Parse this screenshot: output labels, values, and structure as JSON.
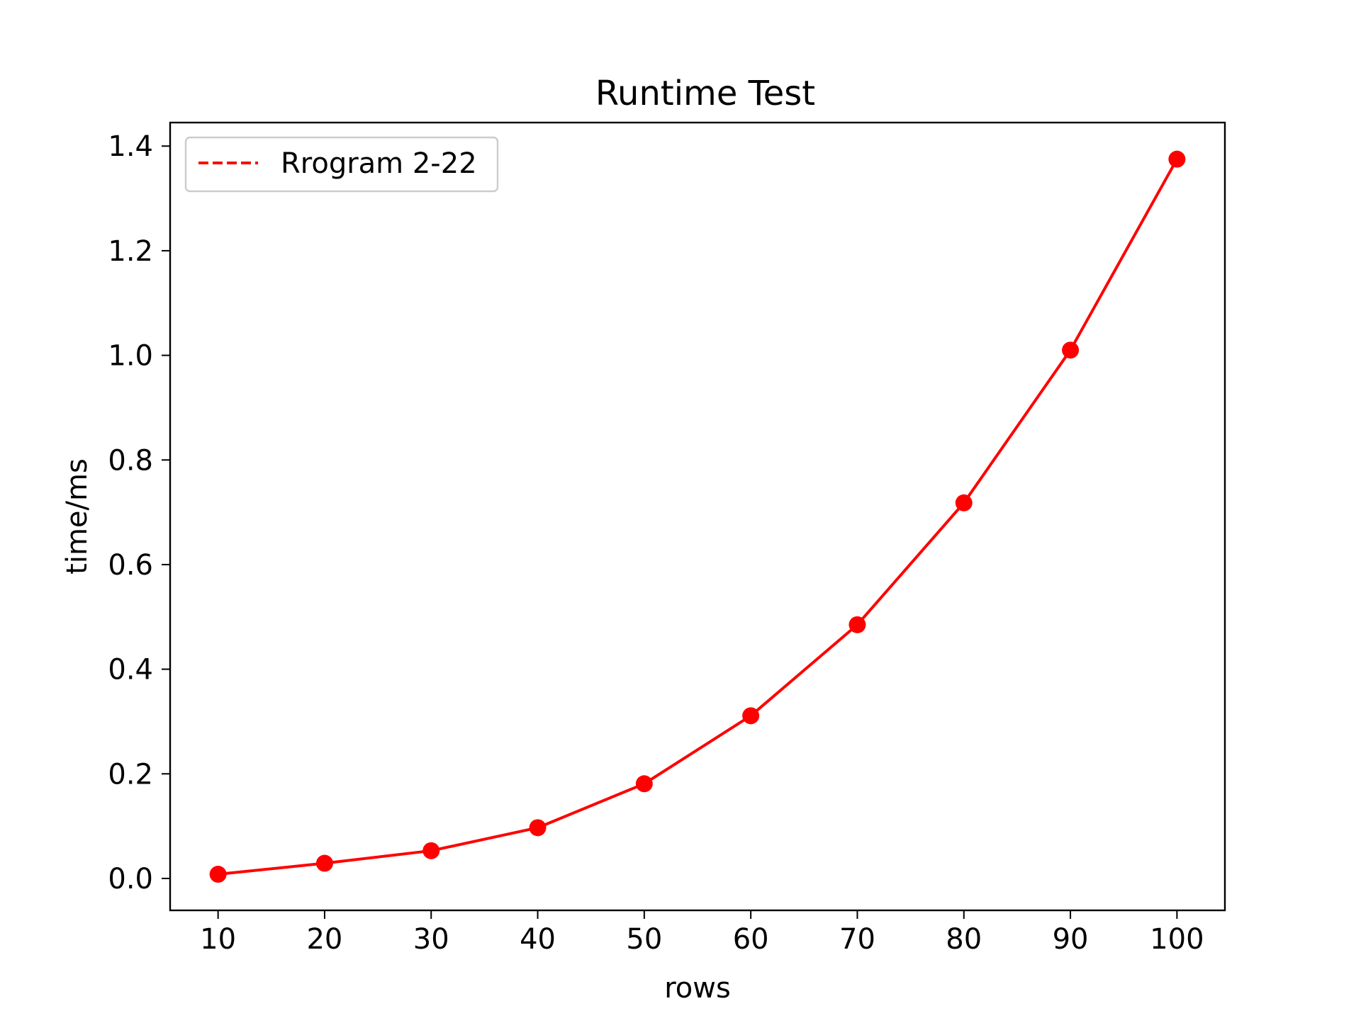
{
  "chart_data": {
    "type": "line",
    "title": "Runtime Test",
    "xlabel": "rows",
    "ylabel": "time/ms",
    "x": [
      10,
      20,
      30,
      40,
      50,
      60,
      70,
      80,
      90,
      100
    ],
    "x_ticks": [
      "10",
      "20",
      "30",
      "40",
      "50",
      "60",
      "70",
      "80",
      "90",
      "100"
    ],
    "y_ticks": [
      "0.0",
      "0.2",
      "0.4",
      "0.6",
      "0.8",
      "1.0",
      "1.2",
      "1.4"
    ],
    "y_tick_values": [
      0.0,
      0.2,
      0.4,
      0.6,
      0.8,
      1.0,
      1.2,
      1.4
    ],
    "xlim": [
      5.5,
      104.5
    ],
    "ylim": [
      -0.061,
      1.445
    ],
    "grid": false,
    "legend_position": "upper-left",
    "series": [
      {
        "name": "Rrogram 2-22",
        "color": "#ff0000",
        "legend_linestyle": "dashed",
        "marker": "circle",
        "values": [
          0.008,
          0.029,
          0.053,
          0.097,
          0.181,
          0.311,
          0.485,
          0.718,
          1.01,
          1.375
        ]
      }
    ]
  }
}
